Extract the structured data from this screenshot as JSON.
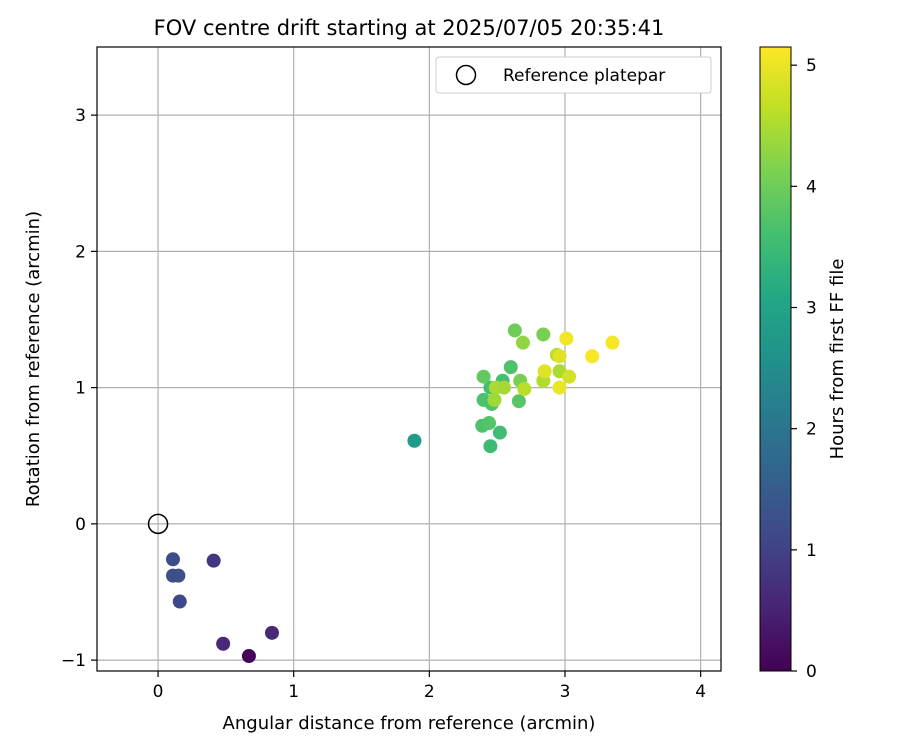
{
  "chart_data": {
    "type": "scatter",
    "title": "FOV centre drift starting at 2025/07/05 20:35:41",
    "xlabel": "Angular distance from reference (arcmin)",
    "ylabel": "Rotation from reference (arcmin)",
    "xlim": [
      -0.45,
      4.15
    ],
    "ylim": [
      -1.08,
      3.5
    ],
    "x_ticks": [
      0,
      1,
      2,
      3,
      4
    ],
    "y_ticks": [
      -1,
      0,
      1,
      2,
      3
    ],
    "grid": true,
    "legend": {
      "position": "top-right",
      "entries": [
        "Reference platepar"
      ]
    },
    "reference_point": {
      "name": "Reference platepar",
      "x": 0.0,
      "y": 0.0
    },
    "colorbar": {
      "label": "Hours from first FF file",
      "min": 0,
      "max": 5.15,
      "ticks": [
        0,
        1,
        2,
        3,
        4,
        5
      ],
      "colormap": "viridis"
    },
    "points": [
      {
        "x": 0.67,
        "y": -0.97,
        "c": 0.05
      },
      {
        "x": 0.48,
        "y": -0.88,
        "c": 0.6
      },
      {
        "x": 0.84,
        "y": -0.8,
        "c": 0.6
      },
      {
        "x": 0.41,
        "y": -0.27,
        "c": 0.8
      },
      {
        "x": 0.16,
        "y": -0.57,
        "c": 1.1
      },
      {
        "x": 0.11,
        "y": -0.26,
        "c": 1.2
      },
      {
        "x": 0.11,
        "y": -0.38,
        "c": 1.25
      },
      {
        "x": 0.15,
        "y": -0.38,
        "c": 1.25
      },
      {
        "x": 1.89,
        "y": 0.61,
        "c": 2.8
      },
      {
        "x": 2.45,
        "y": 0.57,
        "c": 3.5
      },
      {
        "x": 2.52,
        "y": 0.67,
        "c": 3.55
      },
      {
        "x": 2.39,
        "y": 0.72,
        "c": 3.7
      },
      {
        "x": 2.44,
        "y": 0.74,
        "c": 3.75
      },
      {
        "x": 2.4,
        "y": 0.91,
        "c": 3.65
      },
      {
        "x": 2.46,
        "y": 0.88,
        "c": 3.7
      },
      {
        "x": 2.45,
        "y": 1.0,
        "c": 3.6
      },
      {
        "x": 2.54,
        "y": 1.05,
        "c": 3.6
      },
      {
        "x": 2.6,
        "y": 1.15,
        "c": 3.7
      },
      {
        "x": 2.66,
        "y": 0.9,
        "c": 3.8
      },
      {
        "x": 2.4,
        "y": 1.08,
        "c": 3.9
      },
      {
        "x": 2.67,
        "y": 1.05,
        "c": 4.1
      },
      {
        "x": 2.63,
        "y": 1.42,
        "c": 4.0
      },
      {
        "x": 2.84,
        "y": 1.39,
        "c": 4.1
      },
      {
        "x": 2.69,
        "y": 1.33,
        "c": 4.3
      },
      {
        "x": 2.49,
        "y": 1.0,
        "c": 4.5
      },
      {
        "x": 2.48,
        "y": 0.91,
        "c": 4.4
      },
      {
        "x": 2.55,
        "y": 1.0,
        "c": 4.45
      },
      {
        "x": 2.7,
        "y": 0.99,
        "c": 4.6
      },
      {
        "x": 2.84,
        "y": 1.05,
        "c": 4.55
      },
      {
        "x": 2.94,
        "y": 1.24,
        "c": 4.6
      },
      {
        "x": 2.96,
        "y": 1.12,
        "c": 4.5
      },
      {
        "x": 2.85,
        "y": 1.12,
        "c": 4.9
      },
      {
        "x": 2.96,
        "y": 1.23,
        "c": 4.9
      },
      {
        "x": 2.96,
        "y": 1.0,
        "c": 5.0
      },
      {
        "x": 3.01,
        "y": 1.36,
        "c": 5.05
      },
      {
        "x": 3.03,
        "y": 1.08,
        "c": 4.8
      },
      {
        "x": 3.2,
        "y": 1.23,
        "c": 5.1
      },
      {
        "x": 3.35,
        "y": 1.33,
        "c": 5.1
      }
    ]
  }
}
